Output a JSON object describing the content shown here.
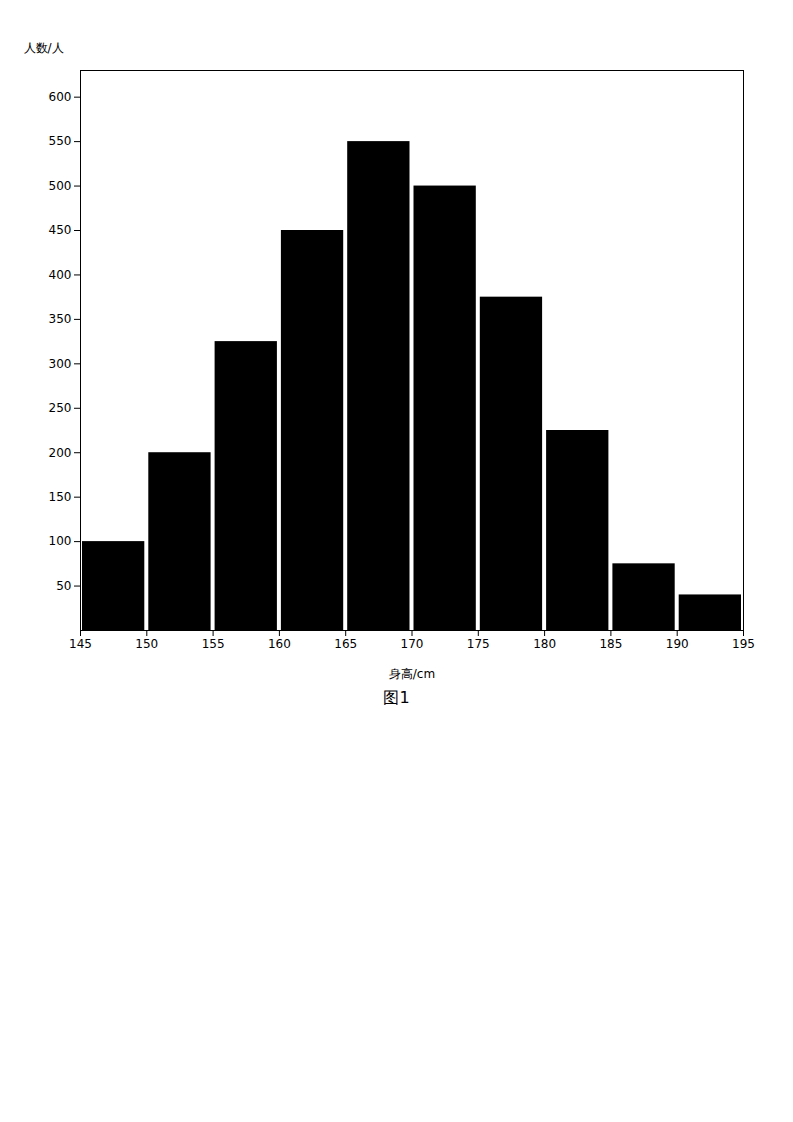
{
  "chart_data": {
    "type": "histogram",
    "title": "图1",
    "xlabel": "身高/cm",
    "ylabel": "人数/人",
    "bins": [
      145,
      150,
      155,
      160,
      165,
      170,
      175,
      180,
      185,
      190,
      195
    ],
    "values": [
      100,
      200,
      325,
      450,
      550,
      500,
      375,
      225,
      75,
      40
    ],
    "xlim": [
      145,
      195
    ],
    "xticks": [
      145,
      150,
      155,
      160,
      165,
      170,
      175,
      180,
      185,
      190,
      195
    ],
    "ylim": [
      0,
      630
    ],
    "yticks": [
      50,
      100,
      150,
      200,
      250,
      300,
      350,
      400,
      450,
      500,
      550,
      600
    ],
    "grid": false
  }
}
